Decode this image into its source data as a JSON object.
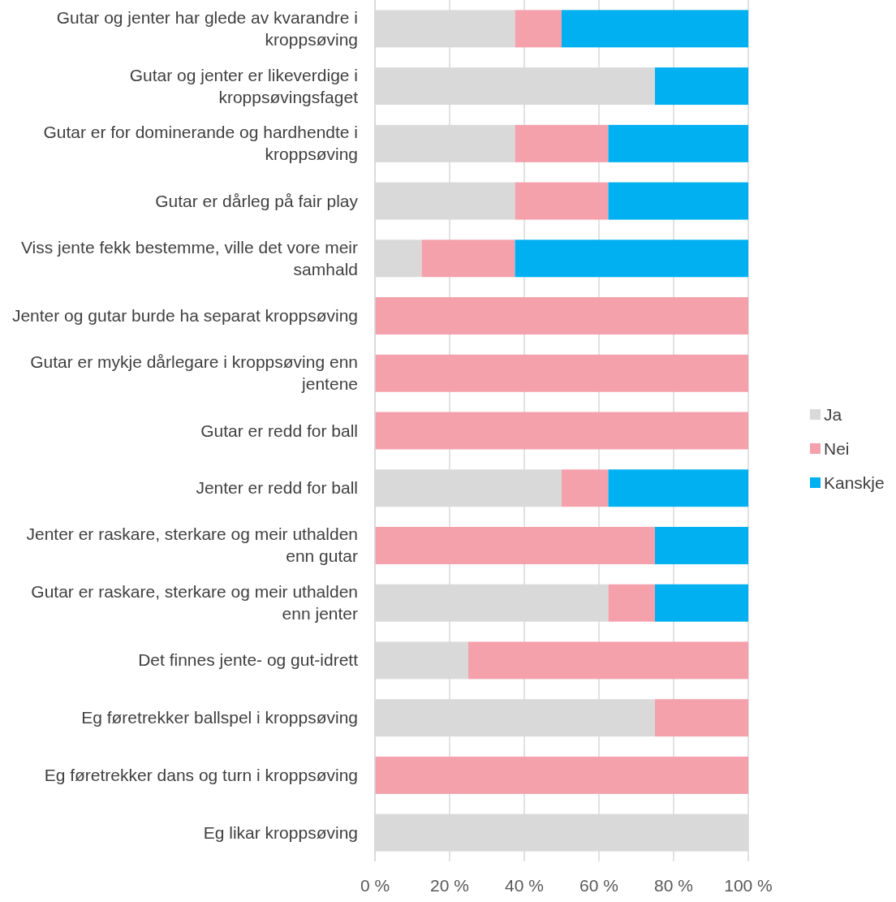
{
  "chart_data": {
    "type": "bar",
    "orientation": "horizontal",
    "stacked": true,
    "grid": "x",
    "legend": "right",
    "categories": [
      "Gutar og jenter har glede av kvarandre i kroppsøving",
      "Gutar og jenter er likeverdige i kroppsøvingsfaget",
      "Gutar er for dominerande og hardhendte i kroppsøving",
      "Gutar er dårleg på fair play",
      "Viss jente fekk bestemme, ville det vore meir samhald",
      "Jenter og gutar burde ha separat kroppsøving",
      "Gutar er mykje dårlegare i kroppsøving enn jentene",
      "Gutar er redd for ball",
      "Jenter er redd for ball",
      "Jenter er raskare, sterkare og meir uthalden enn gutar",
      "Gutar er raskare, sterkare og meir uthalden enn jenter",
      "Det finnes jente- og gut-idrett",
      "Eg føretrekker ballspel i kroppsøving",
      "Eg føretrekker dans og turn i kroppsøving",
      "Eg likar kroppsøving"
    ],
    "series": [
      {
        "name": "Ja",
        "color": "#d9d9d9",
        "values": [
          37.5,
          75,
          37.5,
          37.5,
          12.5,
          0,
          0,
          0,
          50,
          0,
          62.5,
          25,
          75,
          0,
          100
        ]
      },
      {
        "name": "Nei",
        "color": "#f4a1ac",
        "values": [
          12.5,
          0,
          25,
          25,
          25,
          100,
          100,
          100,
          12.5,
          75,
          12.5,
          75,
          25,
          100,
          0
        ]
      },
      {
        "name": "Kanskje",
        "color": "#00b0f0",
        "values": [
          50,
          25,
          37.5,
          37.5,
          62.5,
          0,
          0,
          0,
          37.5,
          25,
          25,
          0,
          0,
          0,
          0
        ]
      }
    ],
    "xlim": [
      0,
      100
    ],
    "xticks": [
      {
        "value": 0,
        "label": "0 %"
      },
      {
        "value": 20,
        "label": "20 %"
      },
      {
        "value": 40,
        "label": "40 %"
      },
      {
        "value": 60,
        "label": "60 %"
      },
      {
        "value": 80,
        "label": "80 %"
      },
      {
        "value": 100,
        "label": "100 %"
      }
    ]
  }
}
